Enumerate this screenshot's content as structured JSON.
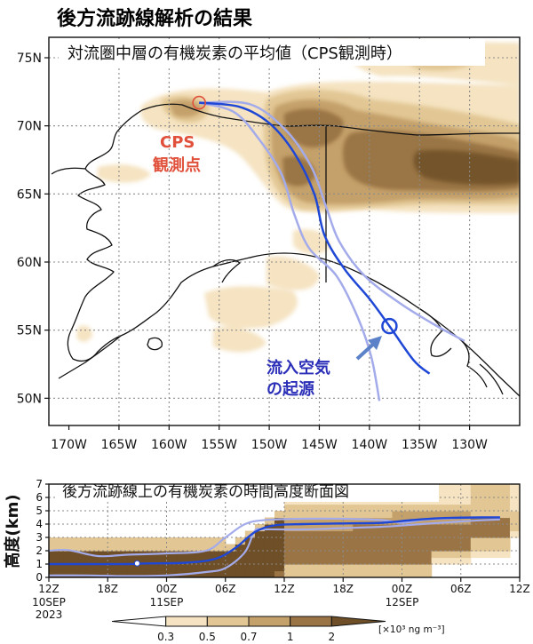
{
  "title": "後方流跡線解析の結果",
  "chart_data": [
    {
      "type": "heatmap",
      "title": "対流圏中層の有機炭素の平均値（CPS観測時）",
      "x_ticks": [
        "170W",
        "165W",
        "160W",
        "155W",
        "150W",
        "145W",
        "140W",
        "135W",
        "130W"
      ],
      "x_values": [
        -170,
        -165,
        -160,
        -155,
        -150,
        -145,
        -140,
        -135,
        -130
      ],
      "y_ticks": [
        "50N",
        "55N",
        "60N",
        "65N",
        "70N",
        "75N"
      ],
      "y_values": [
        50,
        55,
        60,
        65,
        70,
        75
      ],
      "xlim": [
        -172,
        -125
      ],
      "ylim": [
        48,
        76.5
      ],
      "grid": true,
      "annotations": [
        {
          "text_lines": [
            "CPS",
            "観測点"
          ],
          "color": "#e0503a",
          "lon": -157,
          "lat": 71.7
        },
        {
          "text_lines": [
            "流入空気",
            "の起源"
          ],
          "color": "#2b2fb8",
          "lon": -138,
          "lat": 55.3
        }
      ],
      "series": [
        {
          "role": "center",
          "color": "#1f47d6",
          "points": [
            [
              -157,
              71.7
            ],
            [
              -153,
              71.4
            ],
            [
              -150,
              70.2
            ],
            [
              -147.5,
              68
            ],
            [
              -145.5,
              65
            ],
            [
              -144.5,
              62
            ],
            [
              -142.5,
              59.5
            ],
            [
              -140,
              57.3
            ],
            [
              -138,
              55.3
            ],
            [
              -135.6,
              52.8
            ],
            [
              -134,
              51.8
            ]
          ]
        },
        {
          "role": "spread-upper",
          "color": "#a4abeb",
          "points": [
            [
              -157,
              71.7
            ],
            [
              -152,
              71.6
            ],
            [
              -148.5,
              69.8
            ],
            [
              -145.8,
              67
            ],
            [
              -144.3,
              64
            ],
            [
              -143,
              61.5
            ],
            [
              -140.5,
              59
            ],
            [
              -137,
              57
            ],
            [
              -133.5,
              55.4
            ],
            [
              -130.5,
              54.2
            ]
          ]
        },
        {
          "role": "spread-lower",
          "color": "#a4abeb",
          "points": [
            [
              -157,
              71.7
            ],
            [
              -153.5,
              71
            ],
            [
              -151,
              69
            ],
            [
              -148.8,
              66.5
            ],
            [
              -147.5,
              63.5
            ],
            [
              -146,
              61
            ],
            [
              -143.3,
              59
            ],
            [
              -141.2,
              56
            ],
            [
              -139.8,
              53
            ],
            [
              -139,
              49.8
            ]
          ]
        }
      ]
    },
    {
      "type": "heatmap",
      "title": "後方流跡線上の有機炭素の時間高度断面図",
      "ylabel": "高度(km)",
      "y_ticks": [
        "0",
        "1",
        "2",
        "3",
        "4",
        "5",
        "6",
        "7"
      ],
      "ylim": [
        0,
        7
      ],
      "x_ticks": [
        "12Z",
        "18Z",
        "00Z",
        "06Z",
        "12Z",
        "18Z",
        "00Z",
        "06Z",
        "12Z"
      ],
      "x_hours": [
        0,
        6,
        12,
        18,
        24,
        30,
        36,
        42,
        48
      ],
      "x_sublabels": [
        {
          "hour": 0,
          "lines": [
            "10SEP",
            "2023"
          ]
        },
        {
          "hour": 12,
          "lines": [
            "11SEP"
          ]
        },
        {
          "hour": 36,
          "lines": [
            "12SEP"
          ]
        }
      ],
      "series": [
        {
          "role": "center",
          "color": "#1f47d6",
          "points": [
            [
              0,
              1
            ],
            [
              4,
              1
            ],
            [
              8,
              1
            ],
            [
              10,
              1.05
            ],
            [
              14,
              1.1
            ],
            [
              17,
              1.4
            ],
            [
              19,
              2.2
            ],
            [
              21,
              3.4
            ],
            [
              23,
              3.9
            ],
            [
              26,
              4.0
            ],
            [
              30,
              4.05
            ],
            [
              34,
              4.1
            ],
            [
              37,
              4.3
            ],
            [
              40,
              4.45
            ],
            [
              44,
              4.5
            ],
            [
              46,
              4.5
            ]
          ]
        },
        {
          "role": "spread-upper",
          "color": "#a4abeb",
          "points": [
            [
              0,
              2
            ],
            [
              2,
              2.05
            ],
            [
              5,
              1.6
            ],
            [
              8,
              1.7
            ],
            [
              12,
              1.8
            ],
            [
              16,
              2.0
            ],
            [
              18,
              3.0
            ],
            [
              20,
              4.0
            ],
            [
              22,
              4.3
            ],
            [
              26,
              4.4
            ],
            [
              30,
              4.4
            ],
            [
              34,
              4.3
            ],
            [
              36,
              4.1
            ],
            [
              38,
              4.3
            ],
            [
              40,
              4.4
            ],
            [
              44,
              4.5
            ],
            [
              46,
              4.5
            ]
          ]
        },
        {
          "role": "spread-lower",
          "color": "#a4abeb",
          "points": [
            [
              0,
              0.15
            ],
            [
              4,
              0.15
            ],
            [
              8,
              0.1
            ],
            [
              12,
              0.15
            ],
            [
              16,
              0.4
            ],
            [
              18,
              0.7
            ],
            [
              20,
              1.9
            ],
            [
              21,
              3.5
            ],
            [
              22,
              3.6
            ],
            [
              26,
              3.6
            ],
            [
              30,
              3.7
            ],
            [
              34,
              3.8
            ],
            [
              38,
              4.0
            ],
            [
              42,
              4.2
            ],
            [
              46,
              4.35
            ]
          ]
        }
      ],
      "marker": {
        "hour": 9,
        "z": 1.05
      }
    }
  ],
  "colorbar": {
    "levels": [
      "0.3",
      "0.5",
      "0.7",
      "1",
      "2"
    ],
    "colors": [
      "#ffffff",
      "#f5e3c1",
      "#e2c794",
      "#c4a06a",
      "#9a7444",
      "#6e4f27"
    ],
    "unit": "[×10³ ng m⁻³]"
  }
}
